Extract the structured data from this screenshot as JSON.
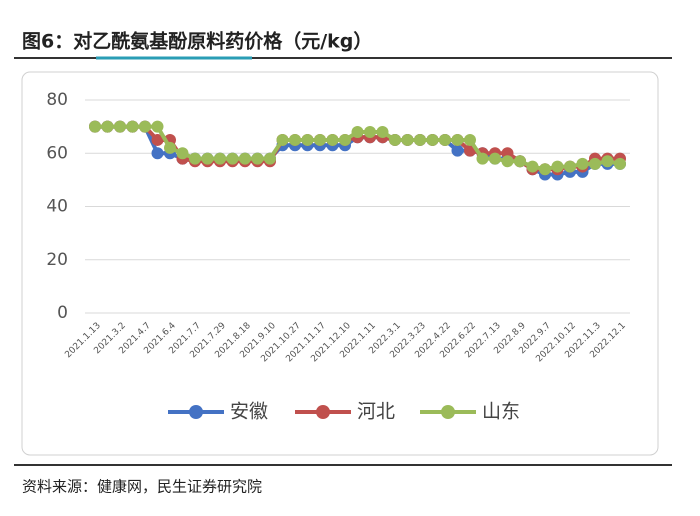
{
  "chart_data": {
    "type": "line",
    "title": "图6：对乙酰氨基酚原料药价格（元/kg）",
    "source": "资料来源：健康网，民生证券研究院",
    "categories": [
      "2021.1.13",
      null,
      "2021.3.2",
      null,
      "2021.4.7",
      null,
      "2021.6.4",
      null,
      "2021.7.7",
      null,
      "2021.7.29",
      null,
      "2021.8.18",
      null,
      "2021.9.10",
      null,
      "2021.10.27",
      null,
      "2021.11.17",
      null,
      "2021.12.10",
      null,
      "2022.1.11",
      null,
      "2022.3.1",
      null,
      "2022.3.23",
      null,
      "2022.4.22",
      null,
      "2022.6.22",
      null,
      "2022.7.13",
      null,
      "2022.8.9",
      null,
      "2022.9.7",
      null,
      "2022.10.12",
      null,
      "2022.11.3",
      null,
      "2022.12.1"
    ],
    "series": [
      {
        "name": "安徽",
        "color": "#4472c4",
        "values": [
          70,
          70,
          70,
          70,
          70,
          60,
          60,
          58,
          58,
          58,
          58,
          58,
          58,
          58,
          58,
          63,
          63,
          63,
          63,
          63,
          63,
          66,
          66,
          66,
          65,
          65,
          65,
          65,
          65,
          61,
          61,
          60,
          58,
          58,
          57,
          54,
          52,
          52,
          53,
          53,
          56,
          56,
          56
        ]
      },
      {
        "name": "河北",
        "color": "#c0504d",
        "values": [
          70,
          70,
          70,
          70,
          70,
          65,
          65,
          58,
          57,
          57,
          57,
          57,
          57,
          57,
          57,
          65,
          65,
          65,
          65,
          65,
          65,
          66,
          66,
          66,
          65,
          65,
          65,
          65,
          65,
          65,
          61,
          60,
          60,
          60,
          57,
          54,
          54,
          54,
          55,
          55,
          58,
          58,
          58
        ]
      },
      {
        "name": "山东",
        "color": "#9bbb59",
        "values": [
          70,
          70,
          70,
          70,
          70,
          70,
          62,
          60,
          58,
          58,
          58,
          58,
          58,
          58,
          58,
          65,
          65,
          65,
          65,
          65,
          65,
          68,
          68,
          68,
          65,
          65,
          65,
          65,
          65,
          65,
          65,
          58,
          58,
          57,
          57,
          55,
          54,
          55,
          55,
          56,
          56,
          57,
          56
        ]
      }
    ],
    "ylim": [
      0,
      80
    ],
    "yticks": [
      0,
      20,
      40,
      60,
      80
    ],
    "grid": true,
    "legend": "bottom"
  }
}
